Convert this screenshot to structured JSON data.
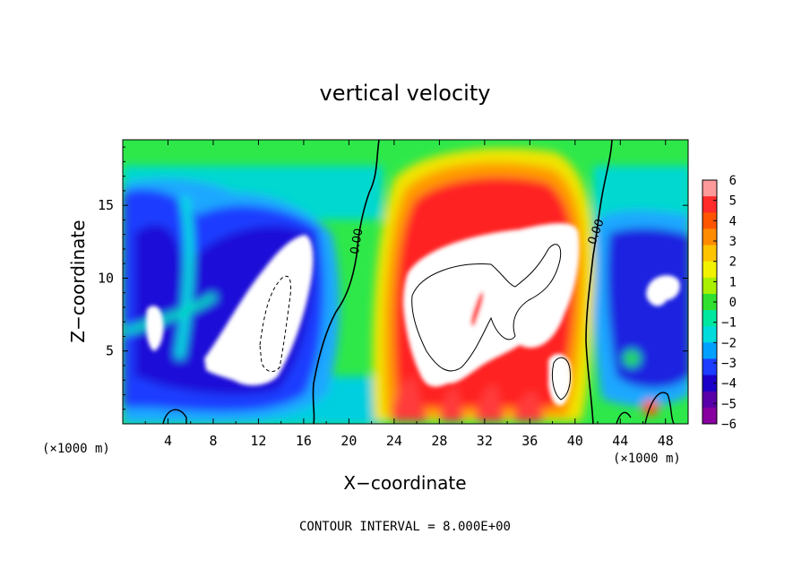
{
  "chart_data": {
    "type": "heatmap",
    "title": "vertical velocity",
    "xlabel": "X−coordinate",
    "ylabel": "Z−coordinate",
    "x_unit_left": "(×1000 m)",
    "x_unit_right": "(×1000 m)",
    "xlim": [
      0,
      50
    ],
    "ylim": [
      0,
      19.5
    ],
    "x_ticks": [
      4,
      8,
      12,
      16,
      20,
      24,
      28,
      32,
      36,
      40,
      44,
      48
    ],
    "y_ticks": [
      5,
      10,
      15
    ],
    "colorbar": {
      "ticks": [
        "6",
        "5",
        "4",
        "3",
        "2",
        "1",
        "0",
        "−1",
        "−2",
        "−3",
        "−4",
        "−5",
        "−6"
      ],
      "colors": [
        "#ff9a9a",
        "#ff2a2a",
        "#ff5500",
        "#ff8c00",
        "#ffc400",
        "#f2f200",
        "#a8f000",
        "#30e030",
        "#00e8a0",
        "#00dcdc",
        "#00a0ff",
        "#1c3cff",
        "#1a00c8",
        "#5a00a8",
        "#8800a0"
      ]
    },
    "contour_labels": [
      "0.00",
      "0.00"
    ],
    "footer": "CONTOUR INTERVAL = 8.000E+00",
    "features": [
      {
        "region": "updraft core",
        "x": [
          25,
          41
        ],
        "z": [
          3,
          16
        ],
        "max": ">6"
      },
      {
        "region": "downdraft band",
        "x": [
          1,
          17
        ],
        "z": [
          1,
          18
        ],
        "min": "<-6"
      },
      {
        "region": "downdraft band",
        "x": [
          43,
          50
        ],
        "z": [
          1,
          17
        ],
        "min": "<-6"
      }
    ]
  }
}
